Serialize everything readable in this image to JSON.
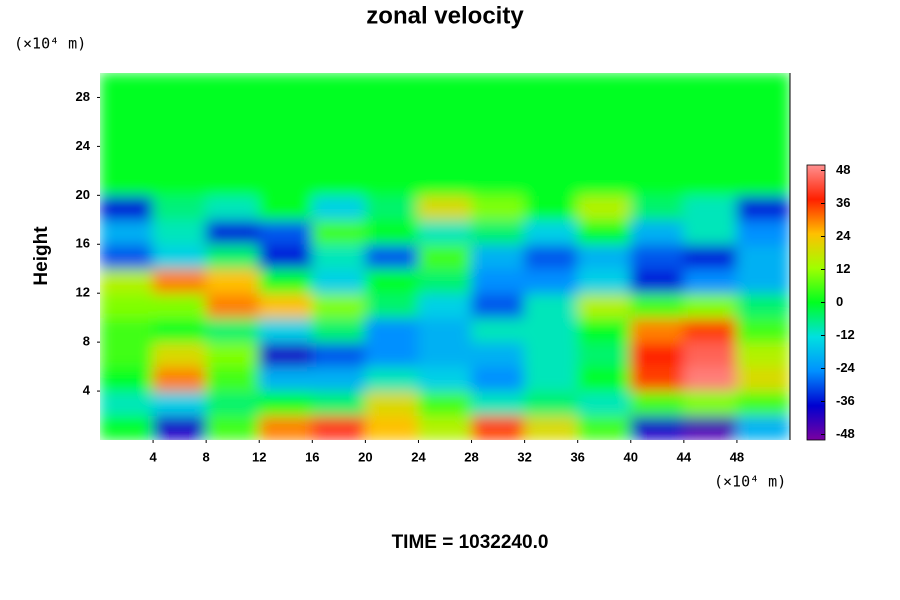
{
  "chart_data": {
    "type": "heatmap",
    "title": "zonal velocity",
    "y_label": "Height",
    "y_unit": "(×10⁴ m)",
    "x_unit": "(×10⁴ m)",
    "annotation": "TIME = 1032240.0",
    "x": [
      2,
      6,
      10,
      14,
      18,
      22,
      26,
      30,
      34,
      38,
      42,
      46,
      50
    ],
    "y": [
      1,
      3,
      5,
      7,
      9,
      11,
      13,
      15,
      17,
      19,
      21,
      23,
      25,
      27,
      29
    ],
    "z": [
      [
        0,
        -40,
        5,
        30,
        40,
        25,
        15,
        35,
        20,
        5,
        -40,
        -45,
        -20
      ],
      [
        -10,
        -15,
        -5,
        0,
        -5,
        20,
        5,
        -10,
        -5,
        -10,
        5,
        10,
        5
      ],
      [
        0,
        30,
        5,
        -20,
        -20,
        -10,
        -15,
        -25,
        -10,
        0,
        35,
        48,
        20
      ],
      [
        5,
        20,
        10,
        -40,
        -30,
        -25,
        -20,
        -20,
        -10,
        -5,
        38,
        45,
        15
      ],
      [
        5,
        0,
        -5,
        -15,
        -5,
        -25,
        -20,
        -10,
        -10,
        0,
        30,
        35,
        5
      ],
      [
        10,
        10,
        30,
        25,
        10,
        -5,
        -15,
        -30,
        -10,
        15,
        5,
        10,
        -5
      ],
      [
        15,
        30,
        25,
        0,
        -15,
        0,
        -5,
        -25,
        -25,
        -15,
        -35,
        -25,
        -20
      ],
      [
        -30,
        -15,
        -5,
        -35,
        -10,
        -30,
        5,
        -20,
        -30,
        -20,
        -30,
        -35,
        -20
      ],
      [
        -20,
        -10,
        -35,
        -30,
        5,
        0,
        -10,
        -5,
        -15,
        0,
        -20,
        -10,
        -25
      ],
      [
        -36,
        -6,
        -10,
        0,
        -15,
        -5,
        20,
        10,
        0,
        15,
        -5,
        -10,
        -35
      ],
      [
        0,
        0,
        0,
        0,
        0,
        0,
        0,
        0,
        0,
        0,
        0,
        0,
        0
      ],
      [
        0,
        0,
        0,
        0,
        0,
        0,
        0,
        0,
        0,
        0,
        0,
        0,
        0
      ],
      [
        0,
        0,
        0,
        0,
        0,
        0,
        0,
        0,
        0,
        0,
        0,
        0,
        0
      ],
      [
        0,
        0,
        0,
        0,
        0,
        0,
        0,
        0,
        0,
        0,
        0,
        0,
        0
      ],
      [
        0,
        0,
        0,
        0,
        0,
        0,
        0,
        0,
        0,
        0,
        0,
        0,
        0
      ]
    ],
    "xlim": [
      0,
      52
    ],
    "ylim": [
      0,
      30
    ],
    "xticks": [
      4,
      8,
      12,
      16,
      20,
      24,
      28,
      32,
      36,
      40,
      44,
      48
    ],
    "yticks": [
      4,
      8,
      12,
      16,
      20,
      24,
      28
    ],
    "colorbar_lim": [
      -50,
      50
    ],
    "colorbar_ticks": [
      -48,
      -36,
      -24,
      -12,
      0,
      12,
      24,
      36,
      48
    ],
    "colorscale": [
      "#7a00a0",
      "#0000d0",
      "#0090ff",
      "#00e0e0",
      "#00ff20",
      "#a0ff00",
      "#ffc000",
      "#ff2000",
      "#ff9090"
    ]
  }
}
